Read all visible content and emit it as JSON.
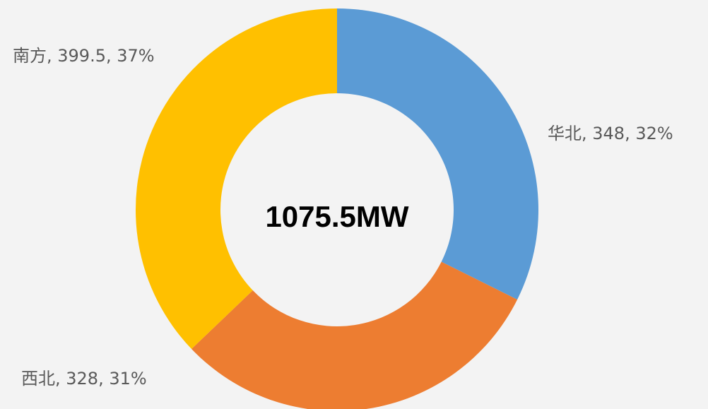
{
  "chart_data": {
    "type": "donut",
    "categories": [
      "华北",
      "西北",
      "南方"
    ],
    "values": [
      348,
      328,
      399.5
    ],
    "value_labels": [
      "华北, 348, 32%",
      "西北, 328, 31%",
      "南方, 399.5, 37%"
    ],
    "colors": [
      "#5b9bd5",
      "#ed7d31",
      "#ffc000"
    ],
    "center_label": "1075.5MW"
  }
}
